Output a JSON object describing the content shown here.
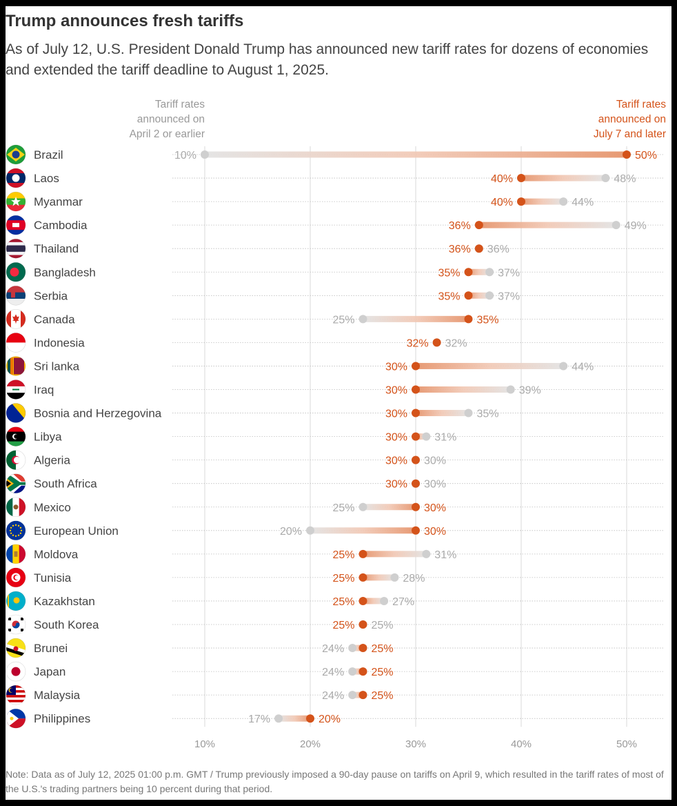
{
  "header": {
    "title": "Trump announces fresh tariffs",
    "subtitle": "As of July 12, U.S. President Donald Trump has announced new tariff rates for dozens of economies and extended the tariff deadline to August 1, 2025."
  },
  "note": "Note: Data as of July 12, 2025 01:00 p.m. GMT / Trump previously imposed a 90-day pause on tariffs on April 9, which resulted in the tariff rates of most of the U.S.'s trading partners being 10 percent during that period.",
  "colors": {
    "new_rate": "#d4531a",
    "old_rate": "#cfcfcf",
    "old_label": "#aaaaaa",
    "grid": "#cccccc"
  },
  "chart_data": {
    "type": "dumbbell",
    "series": [
      {
        "name": "Tariff rates announced on April 2 or earlier",
        "legend_lines": [
          "Tariff rates",
          "announced on",
          "April 2 or earlier"
        ]
      },
      {
        "name": "Tariff rates announced on July 7 and later",
        "legend_lines": [
          "Tariff rates",
          "announced on",
          "July 7 and later"
        ]
      }
    ],
    "xlim": [
      10,
      50
    ],
    "x_ticks": [
      "10%",
      "20%",
      "30%",
      "40%",
      "50%"
    ],
    "unit": "%",
    "grid": true,
    "rows": [
      {
        "country": "Brazil",
        "flag": "brazil-flag-icon",
        "old": 10,
        "new": 50
      },
      {
        "country": "Laos",
        "flag": "laos-flag-icon",
        "old": 48,
        "new": 40
      },
      {
        "country": "Myanmar",
        "flag": "myanmar-flag-icon",
        "old": 44,
        "new": 40
      },
      {
        "country": "Cambodia",
        "flag": "cambodia-flag-icon",
        "old": 49,
        "new": 36
      },
      {
        "country": "Thailand",
        "flag": "thailand-flag-icon",
        "old": 36,
        "new": 36
      },
      {
        "country": "Bangladesh",
        "flag": "bangladesh-flag-icon",
        "old": 37,
        "new": 35
      },
      {
        "country": "Serbia",
        "flag": "serbia-flag-icon",
        "old": 37,
        "new": 35
      },
      {
        "country": "Canada",
        "flag": "canada-flag-icon",
        "old": 25,
        "new": 35
      },
      {
        "country": "Indonesia",
        "flag": "indonesia-flag-icon",
        "old": 32,
        "new": 32
      },
      {
        "country": "Sri lanka",
        "flag": "sri-lanka-flag-icon",
        "old": 44,
        "new": 30
      },
      {
        "country": "Iraq",
        "flag": "iraq-flag-icon",
        "old": 39,
        "new": 30
      },
      {
        "country": "Bosnia and Herzegovina",
        "flag": "bosnia-flag-icon",
        "old": 35,
        "new": 30
      },
      {
        "country": "Libya",
        "flag": "libya-flag-icon",
        "old": 31,
        "new": 30
      },
      {
        "country": "Algeria",
        "flag": "algeria-flag-icon",
        "old": 30,
        "new": 30
      },
      {
        "country": "South Africa",
        "flag": "south-africa-flag-icon",
        "old": 30,
        "new": 30
      },
      {
        "country": "Mexico",
        "flag": "mexico-flag-icon",
        "old": 25,
        "new": 30
      },
      {
        "country": "European Union",
        "flag": "eu-flag-icon",
        "old": 20,
        "new": 30
      },
      {
        "country": "Moldova",
        "flag": "moldova-flag-icon",
        "old": 31,
        "new": 25
      },
      {
        "country": "Tunisia",
        "flag": "tunisia-flag-icon",
        "old": 28,
        "new": 25
      },
      {
        "country": "Kazakhstan",
        "flag": "kazakhstan-flag-icon",
        "old": 27,
        "new": 25
      },
      {
        "country": "South Korea",
        "flag": "south-korea-flag-icon",
        "old": 25,
        "new": 25
      },
      {
        "country": "Brunei",
        "flag": "brunei-flag-icon",
        "old": 24,
        "new": 25
      },
      {
        "country": "Japan",
        "flag": "japan-flag-icon",
        "old": 24,
        "new": 25
      },
      {
        "country": "Malaysia",
        "flag": "malaysia-flag-icon",
        "old": 24,
        "new": 25
      },
      {
        "country": "Philippines",
        "flag": "philippines-flag-icon",
        "old": 17,
        "new": 20
      }
    ]
  }
}
